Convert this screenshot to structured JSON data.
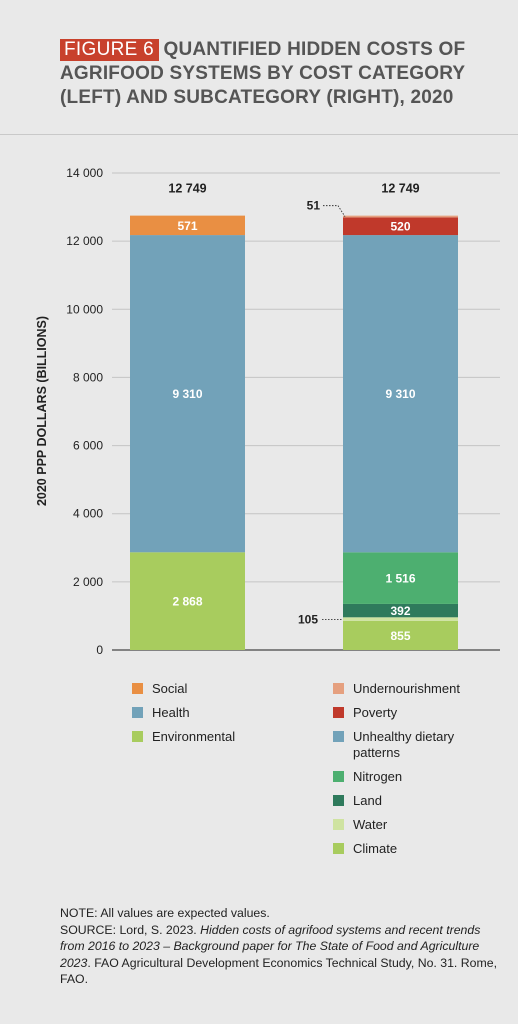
{
  "header": {
    "figure_tag": "FIGURE 6",
    "title": "QUANTIFIED HIDDEN COSTS OF AGRIFOOD SYSTEMS BY COST CATEGORY (LEFT) AND SUBCATEGORY (RIGHT), 2020"
  },
  "chart_data": {
    "type": "bar",
    "stacked": true,
    "ylabel": "2020 PPP DOLLARS (BILLIONS)",
    "ylim": [
      0,
      14000
    ],
    "yticks": [
      0,
      2000,
      4000,
      6000,
      8000,
      10000,
      12000,
      14000
    ],
    "ytick_labels": [
      "0",
      "2 000",
      "4 000",
      "6 000",
      "8 000",
      "10 000",
      "12 000",
      "14 000"
    ],
    "grid": true,
    "bars": [
      {
        "total": 12749,
        "total_label": "12 749",
        "segments": [
          {
            "name": "Environmental",
            "value": 2868,
            "label": "2 868",
            "color": "#a8cc5e"
          },
          {
            "name": "Health",
            "value": 9310,
            "label": "9 310",
            "color": "#72a2b9"
          },
          {
            "name": "Social",
            "value": 571,
            "label": "571",
            "color": "#e98f43"
          }
        ]
      },
      {
        "total": 12749,
        "total_label": "12 749",
        "segments": [
          {
            "name": "Climate",
            "value": 855,
            "label": "855",
            "color": "#a8cc5e"
          },
          {
            "name": "Water",
            "value": 105,
            "label": "105",
            "color": "#cfe3a1",
            "callout": "left"
          },
          {
            "name": "Land",
            "value": 392,
            "label": "392",
            "color": "#2f7a5c"
          },
          {
            "name": "Nitrogen",
            "value": 1516,
            "label": "1 516",
            "color": "#4daf70"
          },
          {
            "name": "Unhealthy dietary patterns",
            "value": 9310,
            "label": "9 310",
            "color": "#72a2b9"
          },
          {
            "name": "Poverty",
            "value": 520,
            "label": "520",
            "color": "#c0392b"
          },
          {
            "name": "Undernourishment",
            "value": 51,
            "label": "51",
            "color": "#e5a07f",
            "callout": "top-left"
          }
        ]
      }
    ],
    "legend_left": [
      {
        "name": "Social",
        "color": "#e98f43"
      },
      {
        "name": "Health",
        "color": "#72a2b9"
      },
      {
        "name": "Environmental",
        "color": "#a8cc5e"
      }
    ],
    "legend_right": [
      {
        "name": "Undernourishment",
        "color": "#e5a07f"
      },
      {
        "name": "Poverty",
        "color": "#c0392b"
      },
      {
        "name": "Unhealthy dietary patterns",
        "color": "#72a2b9"
      },
      {
        "name": "Nitrogen",
        "color": "#4daf70"
      },
      {
        "name": "Land",
        "color": "#2f7a5c"
      },
      {
        "name": "Water",
        "color": "#cfe3a1"
      },
      {
        "name": "Climate",
        "color": "#a8cc5e"
      }
    ]
  },
  "notes": {
    "note": "NOTE: All values are expected values.",
    "source_prefix": "SOURCE: Lord, S. 2023.",
    "source_italic": "Hidden costs of agrifood systems and recent trends from 2016 to 2023 – Background paper for The State of Food and Agriculture 2023",
    "source_suffix": ". FAO Agricultural Development Economics Technical Study, No. 31. Rome, FAO."
  }
}
